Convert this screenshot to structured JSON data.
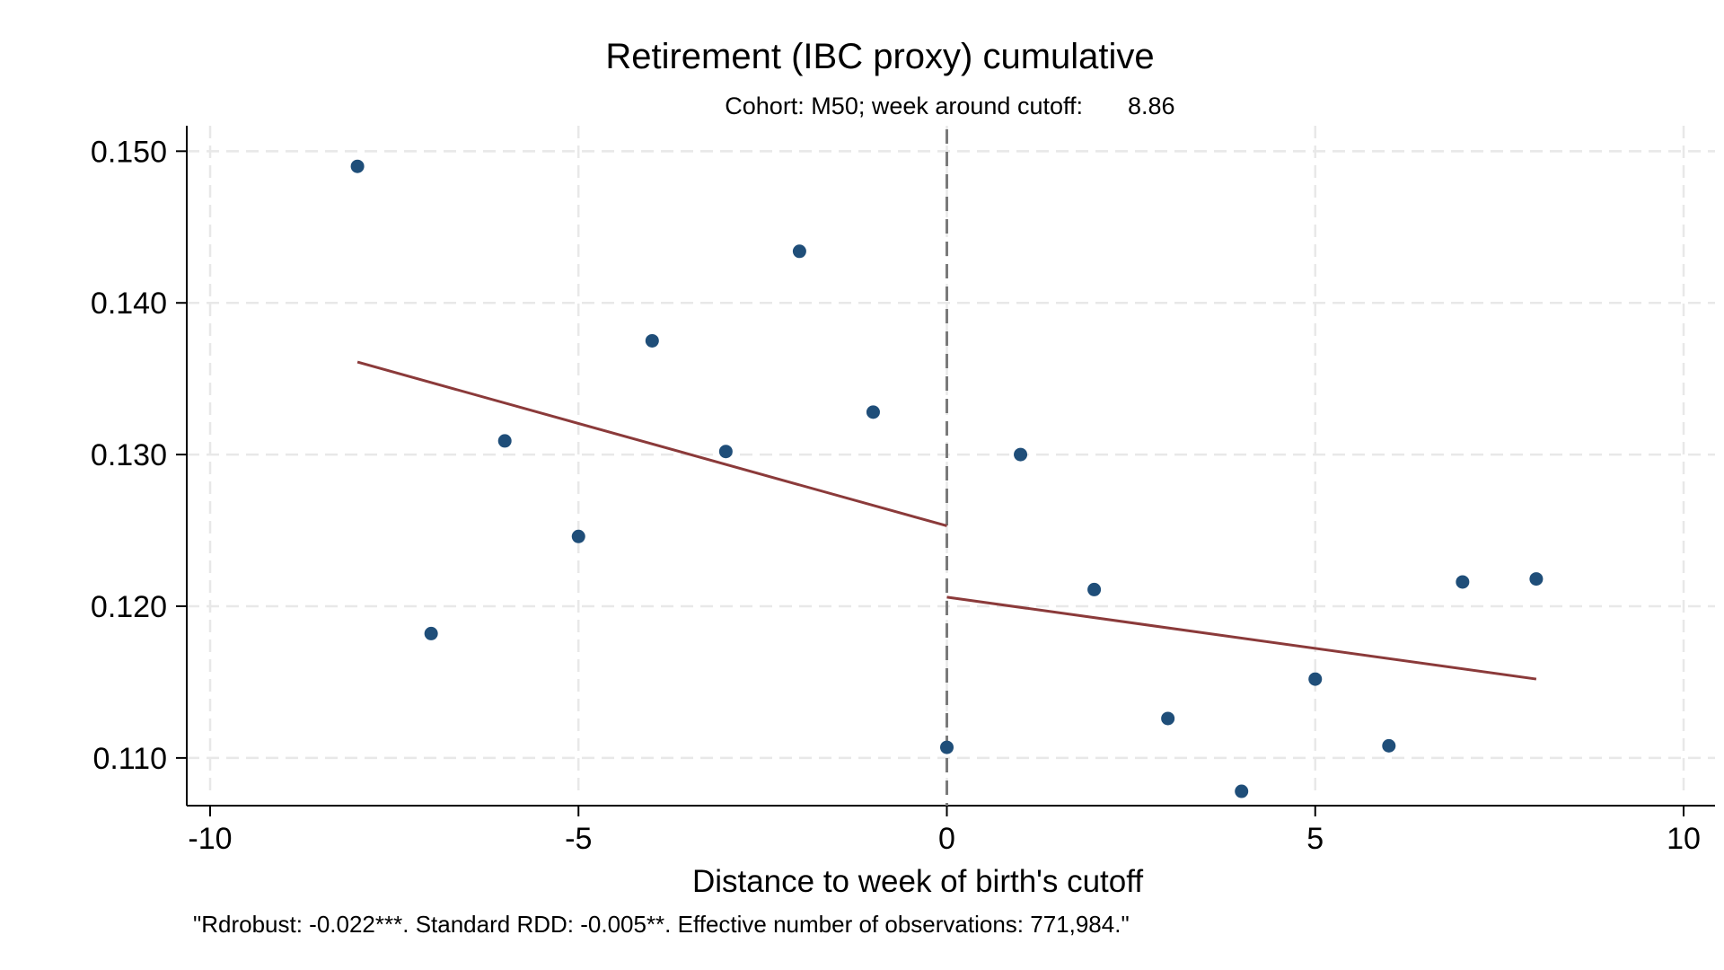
{
  "chart_data": {
    "type": "scatter",
    "title": "Retirement (IBC proxy) cumulative",
    "subtitle_prefix": "Cohort: M50; week around cutoff:",
    "subtitle_value": "8.86",
    "xlabel": "Distance to week of birth's cutoff",
    "ylabel": "",
    "note": "\"Rdrobust: -0.022***. Standard RDD: -0.005**. Effective number of observations: 771,984.\"",
    "xlim": [
      -10,
      10
    ],
    "ylim": [
      0.1065,
      0.1515
    ],
    "x_ticks": [
      -10,
      -5,
      0,
      5,
      10
    ],
    "x_tick_labels": [
      "-10",
      "-5",
      "0",
      "5",
      "10"
    ],
    "y_ticks": [
      0.11,
      0.12,
      0.13,
      0.14,
      0.15
    ],
    "y_tick_labels": [
      "0.110",
      "0.120",
      "0.130",
      "0.140",
      "0.150"
    ],
    "grid": true,
    "cutoff_x": 0,
    "points": [
      {
        "x": -8,
        "y": 0.149
      },
      {
        "x": -7,
        "y": 0.1182
      },
      {
        "x": -6,
        "y": 0.1309
      },
      {
        "x": -5,
        "y": 0.1246
      },
      {
        "x": -4,
        "y": 0.1375
      },
      {
        "x": -3,
        "y": 0.1302
      },
      {
        "x": -2,
        "y": 0.1434
      },
      {
        "x": -1,
        "y": 0.1328
      },
      {
        "x": 0,
        "y": 0.1107
      },
      {
        "x": 1,
        "y": 0.13
      },
      {
        "x": 2,
        "y": 0.1211
      },
      {
        "x": 3,
        "y": 0.1126
      },
      {
        "x": 4,
        "y": 0.1078
      },
      {
        "x": 5,
        "y": 0.1152
      },
      {
        "x": 6,
        "y": 0.1108
      },
      {
        "x": 7,
        "y": 0.1216
      },
      {
        "x": 8,
        "y": 0.1218
      }
    ],
    "fit_left": [
      {
        "x": -8,
        "y": 0.1361
      },
      {
        "x": 0,
        "y": 0.1253
      }
    ],
    "fit_right": [
      {
        "x": 0,
        "y": 0.1206
      },
      {
        "x": 8,
        "y": 0.1152
      }
    ],
    "colors": {
      "points": "#1f4e79",
      "fit": "#8b3a3a",
      "cutoff": "#7a7a7a",
      "grid": "#e8e8e8",
      "axis": "#000000"
    }
  }
}
